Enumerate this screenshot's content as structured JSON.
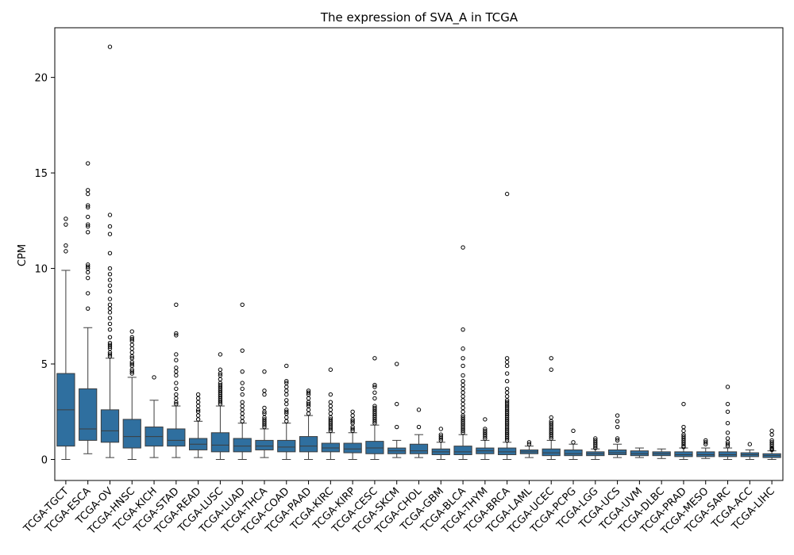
{
  "chart_data": {
    "type": "box",
    "title": "The expression of SVA_A in TCGA",
    "xlabel": "",
    "ylabel": "CPM",
    "ylim": [
      -1.1,
      22.6
    ],
    "yticks": [
      0,
      5,
      10,
      15,
      20
    ],
    "box_color": "#2f6f9f",
    "grid": false,
    "categories": [
      "TCGA-TGCT",
      "TCGA-ESCA",
      "TCGA-OV",
      "TCGA-HNSC",
      "TCGA-KICH",
      "TCGA-STAD",
      "TCGA-READ",
      "TCGA-LUSC",
      "TCGA-LUAD",
      "TCGA-THCA",
      "TCGA-COAD",
      "TCGA-PAAD",
      "TCGA-KIRC",
      "TCGA-KIRP",
      "TCGA-CESC",
      "TCGA-SKCM",
      "TCGA-CHOL",
      "TCGA-GBM",
      "TCGA-BLCA",
      "TCGA-THYM",
      "TCGA-BRCA",
      "TCGA-LAML",
      "TCGA-UCEC",
      "TCGA-PCPG",
      "TCGA-LGG",
      "TCGA-UCS",
      "TCGA-UVM",
      "TCGA-DLBC",
      "TCGA-PRAD",
      "TCGA-MESO",
      "TCGA-SARC",
      "TCGA-ACC",
      "TCGA-LIHC"
    ],
    "boxes": [
      {
        "label": "TCGA-TGCT",
        "whislo": 0.0,
        "q1": 0.7,
        "med": 2.6,
        "q3": 4.5,
        "whishi": 9.9,
        "fliers": [
          10.9,
          11.2,
          12.3,
          12.6
        ]
      },
      {
        "label": "TCGA-ESCA",
        "whislo": 0.3,
        "q1": 1.0,
        "med": 1.6,
        "q3": 3.7,
        "whishi": 6.9,
        "fliers": [
          7.9,
          8.7,
          9.5,
          9.8,
          10.0,
          10.1,
          10.2,
          11.9,
          12.2,
          12.3,
          12.7,
          13.2,
          13.3,
          13.9,
          14.1,
          15.5
        ]
      },
      {
        "label": "TCGA-OV",
        "whislo": 0.1,
        "q1": 0.9,
        "med": 1.5,
        "q3": 2.6,
        "whishi": 5.3,
        "fliers": [
          5.4,
          5.5,
          5.6,
          5.8,
          5.9,
          6.0,
          6.1,
          6.4,
          6.8,
          7.1,
          7.4,
          7.7,
          7.9,
          8.1,
          8.4,
          8.8,
          9.1,
          9.4,
          9.7,
          10.0,
          10.8,
          11.8,
          12.2,
          12.8,
          21.6
        ]
      },
      {
        "label": "TCGA-HNSC",
        "whislo": 0.0,
        "q1": 0.6,
        "med": 1.2,
        "q3": 2.1,
        "whishi": 4.3,
        "fliers": [
          4.5,
          4.6,
          4.7,
          4.9,
          5.0,
          5.1,
          5.3,
          5.4,
          5.6,
          5.8,
          6.0,
          6.2,
          6.3,
          6.4,
          6.7
        ]
      },
      {
        "label": "TCGA-KICH",
        "whislo": 0.1,
        "q1": 0.7,
        "med": 1.2,
        "q3": 1.7,
        "whishi": 3.1,
        "fliers": [
          4.3
        ]
      },
      {
        "label": "TCGA-STAD",
        "whislo": 0.1,
        "q1": 0.7,
        "med": 1.0,
        "q3": 1.6,
        "whishi": 2.8,
        "fliers": [
          2.9,
          3.0,
          3.2,
          3.4,
          3.7,
          4.0,
          4.4,
          4.6,
          4.8,
          5.2,
          5.5,
          6.5,
          6.6,
          8.1
        ]
      },
      {
        "label": "TCGA-READ",
        "whislo": 0.1,
        "q1": 0.5,
        "med": 0.8,
        "q3": 1.1,
        "whishi": 2.0,
        "fliers": [
          2.1,
          2.3,
          2.5,
          2.6,
          2.8,
          3.0,
          3.2,
          3.4
        ]
      },
      {
        "label": "TCGA-LUSC",
        "whislo": 0.0,
        "q1": 0.4,
        "med": 0.75,
        "q3": 1.4,
        "whishi": 2.8,
        "fliers": [
          2.9,
          3.0,
          3.1,
          3.2,
          3.3,
          3.4,
          3.5,
          3.6,
          3.7,
          3.8,
          3.9,
          4.0,
          4.2,
          4.4,
          4.5,
          4.7,
          5.5
        ]
      },
      {
        "label": "TCGA-LUAD",
        "whislo": 0.0,
        "q1": 0.4,
        "med": 0.7,
        "q3": 1.1,
        "whishi": 1.9,
        "fliers": [
          2.0,
          2.2,
          2.4,
          2.6,
          2.8,
          3.0,
          3.4,
          3.7,
          4.0,
          4.6,
          5.7,
          8.1
        ]
      },
      {
        "label": "TCGA-THCA",
        "whislo": 0.1,
        "q1": 0.5,
        "med": 0.7,
        "q3": 1.0,
        "whishi": 1.6,
        "fliers": [
          1.7,
          1.8,
          1.9,
          2.0,
          2.1,
          2.2,
          2.4,
          2.5,
          2.7,
          3.4,
          3.6,
          4.6
        ]
      },
      {
        "label": "TCGA-COAD",
        "whislo": 0.0,
        "q1": 0.4,
        "med": 0.65,
        "q3": 1.0,
        "whishi": 1.9,
        "fliers": [
          2.0,
          2.2,
          2.4,
          2.5,
          2.6,
          2.9,
          3.1,
          3.4,
          3.6,
          3.8,
          4.0,
          4.1,
          4.9
        ]
      },
      {
        "label": "TCGA-PAAD",
        "whislo": 0.0,
        "q1": 0.4,
        "med": 0.7,
        "q3": 1.2,
        "whishi": 2.3,
        "fliers": [
          2.4,
          2.6,
          2.8,
          2.9,
          3.0,
          3.2,
          3.4,
          3.5,
          3.6
        ]
      },
      {
        "label": "TCGA-KIRC",
        "whislo": 0.0,
        "q1": 0.4,
        "med": 0.6,
        "q3": 0.85,
        "whishi": 1.4,
        "fliers": [
          1.5,
          1.6,
          1.7,
          1.8,
          1.9,
          2.0,
          2.1,
          2.2,
          2.4,
          2.6,
          2.8,
          3.0,
          3.4,
          4.7
        ]
      },
      {
        "label": "TCGA-KIRP",
        "whislo": 0.0,
        "q1": 0.35,
        "med": 0.55,
        "q3": 0.85,
        "whishi": 1.4,
        "fliers": [
          1.5,
          1.6,
          1.7,
          1.9,
          2.0,
          2.1,
          2.3,
          2.5
        ]
      },
      {
        "label": "TCGA-CESC",
        "whislo": 0.0,
        "q1": 0.3,
        "med": 0.6,
        "q3": 0.95,
        "whishi": 1.8,
        "fliers": [
          1.9,
          2.0,
          2.1,
          2.2,
          2.3,
          2.4,
          2.5,
          2.6,
          2.7,
          2.8,
          3.2,
          3.5,
          3.8,
          3.9,
          5.3
        ]
      },
      {
        "label": "TCGA-SKCM",
        "whislo": 0.1,
        "q1": 0.3,
        "med": 0.45,
        "q3": 0.6,
        "whishi": 1.0,
        "fliers": [
          1.7,
          2.9,
          5.0
        ]
      },
      {
        "label": "TCGA-CHOL",
        "whislo": 0.1,
        "q1": 0.3,
        "med": 0.45,
        "q3": 0.8,
        "whishi": 1.3,
        "fliers": [
          1.7,
          2.6
        ]
      },
      {
        "label": "TCGA-GBM",
        "whislo": 0.0,
        "q1": 0.25,
        "med": 0.4,
        "q3": 0.55,
        "whishi": 0.9,
        "fliers": [
          1.0,
          1.1,
          1.2,
          1.3,
          1.6
        ]
      },
      {
        "label": "TCGA-BLCA",
        "whislo": 0.0,
        "q1": 0.25,
        "med": 0.4,
        "q3": 0.7,
        "whishi": 1.3,
        "fliers": [
          1.4,
          1.5,
          1.6,
          1.7,
          1.8,
          1.9,
          2.0,
          2.1,
          2.2,
          2.3,
          2.5,
          2.7,
          2.9,
          3.1,
          3.3,
          3.5,
          3.7,
          3.9,
          4.1,
          4.4,
          4.9,
          5.3,
          5.8,
          6.8,
          11.1
        ]
      },
      {
        "label": "TCGA-THYM",
        "whislo": 0.0,
        "q1": 0.3,
        "med": 0.45,
        "q3": 0.6,
        "whishi": 1.0,
        "fliers": [
          1.1,
          1.2,
          1.3,
          1.4,
          1.5,
          1.6,
          2.1
        ]
      },
      {
        "label": "TCGA-BRCA",
        "whislo": 0.0,
        "q1": 0.25,
        "med": 0.4,
        "q3": 0.6,
        "whishi": 0.9,
        "fliers": [
          1.0,
          1.1,
          1.2,
          1.3,
          1.4,
          1.5,
          1.6,
          1.7,
          1.8,
          1.9,
          2.0,
          2.1,
          2.2,
          2.3,
          2.4,
          2.5,
          2.6,
          2.7,
          2.8,
          2.9,
          3.0,
          3.1,
          3.3,
          3.5,
          3.7,
          4.1,
          4.5,
          4.9,
          5.1,
          5.3,
          13.9
        ]
      },
      {
        "label": "TCGA-LAML",
        "whislo": 0.1,
        "q1": 0.3,
        "med": 0.4,
        "q3": 0.5,
        "whishi": 0.7,
        "fliers": [
          0.8,
          0.9
        ]
      },
      {
        "label": "TCGA-UCEC",
        "whislo": 0.0,
        "q1": 0.2,
        "med": 0.35,
        "q3": 0.55,
        "whishi": 1.0,
        "fliers": [
          1.1,
          1.2,
          1.3,
          1.4,
          1.5,
          1.6,
          1.7,
          1.8,
          1.9,
          2.0,
          2.2,
          4.7,
          5.3
        ]
      },
      {
        "label": "TCGA-PCPG",
        "whislo": 0.0,
        "q1": 0.2,
        "med": 0.3,
        "q3": 0.5,
        "whishi": 0.8,
        "fliers": [
          0.9,
          1.5
        ]
      },
      {
        "label": "TCGA-LGG",
        "whislo": 0.0,
        "q1": 0.2,
        "med": 0.3,
        "q3": 0.4,
        "whishi": 0.55,
        "fliers": [
          0.6,
          0.7,
          0.8,
          0.9,
          1.0,
          1.1
        ]
      },
      {
        "label": "TCGA-UCS",
        "whislo": 0.1,
        "q1": 0.25,
        "med": 0.35,
        "q3": 0.5,
        "whishi": 0.8,
        "fliers": [
          1.0,
          1.1,
          1.7,
          2.0,
          2.3
        ]
      },
      {
        "label": "TCGA-UVM",
        "whislo": 0.1,
        "q1": 0.2,
        "med": 0.3,
        "q3": 0.45,
        "whishi": 0.6,
        "fliers": []
      },
      {
        "label": "TCGA-DLBC",
        "whislo": 0.05,
        "q1": 0.2,
        "med": 0.3,
        "q3": 0.4,
        "whishi": 0.55,
        "fliers": []
      },
      {
        "label": "TCGA-PRAD",
        "whislo": 0.0,
        "q1": 0.15,
        "med": 0.25,
        "q3": 0.4,
        "whishi": 0.6,
        "fliers": [
          0.65,
          0.7,
          0.8,
          0.9,
          1.0,
          1.1,
          1.2,
          1.3,
          1.5,
          1.7,
          2.9
        ]
      },
      {
        "label": "TCGA-MESO",
        "whislo": 0.05,
        "q1": 0.15,
        "med": 0.25,
        "q3": 0.4,
        "whishi": 0.6,
        "fliers": [
          0.8,
          0.9,
          1.0
        ]
      },
      {
        "label": "TCGA-SARC",
        "whislo": 0.0,
        "q1": 0.15,
        "med": 0.25,
        "q3": 0.4,
        "whishi": 0.6,
        "fliers": [
          0.7,
          0.8,
          0.9,
          1.1,
          1.4,
          1.9,
          2.5,
          2.9,
          3.8
        ]
      },
      {
        "label": "TCGA-ACC",
        "whislo": 0.0,
        "q1": 0.15,
        "med": 0.25,
        "q3": 0.35,
        "whishi": 0.5,
        "fliers": [
          0.8
        ]
      },
      {
        "label": "TCGA-LIHC",
        "whislo": 0.0,
        "q1": 0.1,
        "med": 0.2,
        "q3": 0.3,
        "whishi": 0.45,
        "fliers": [
          0.5,
          0.55,
          0.6,
          0.7,
          0.8,
          0.9,
          1.0,
          1.3,
          1.5
        ]
      }
    ]
  }
}
